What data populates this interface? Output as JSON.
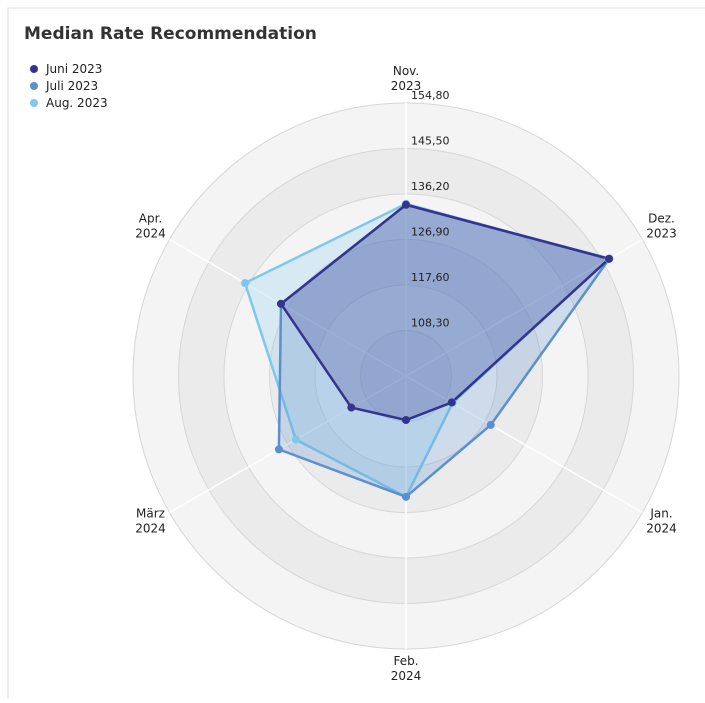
{
  "chart_data": {
    "type": "radar",
    "title": "Median Rate Recommendation",
    "categories": [
      "Nov. 2023",
      "Dez. 2023",
      "Jan. 2024",
      "Feb. 2024",
      "März 2024",
      "Apr. 2024"
    ],
    "series": [
      {
        "name": "Juni 2023",
        "color": "#34348f",
        "values": [
          134.0,
          146.9,
          109.8,
          108.0,
          111.9,
          128.5
        ]
      },
      {
        "name": "Juli 2023",
        "color": "#5b8fd0",
        "values": [
          134.0,
          147.0,
          119.0,
          123.7,
          129.0,
          128.5
        ]
      },
      {
        "name": "Aug. 2023",
        "color": "#7ec8ec",
        "values": [
          134.2,
          146.8,
          110.0,
          123.7,
          125.0,
          137.0
        ]
      }
    ],
    "rlim": [
      99.0,
      154.8
    ],
    "rticks": [
      {
        "value": 108.3,
        "label": "108,30"
      },
      {
        "value": 117.6,
        "label": "117,60"
      },
      {
        "value": 126.9,
        "label": "126,90"
      },
      {
        "value": 136.2,
        "label": "136,20"
      },
      {
        "value": 145.5,
        "label": "145,50"
      },
      {
        "value": 154.8,
        "label": "154,80"
      }
    ],
    "grid": true,
    "legend": "top-left"
  }
}
